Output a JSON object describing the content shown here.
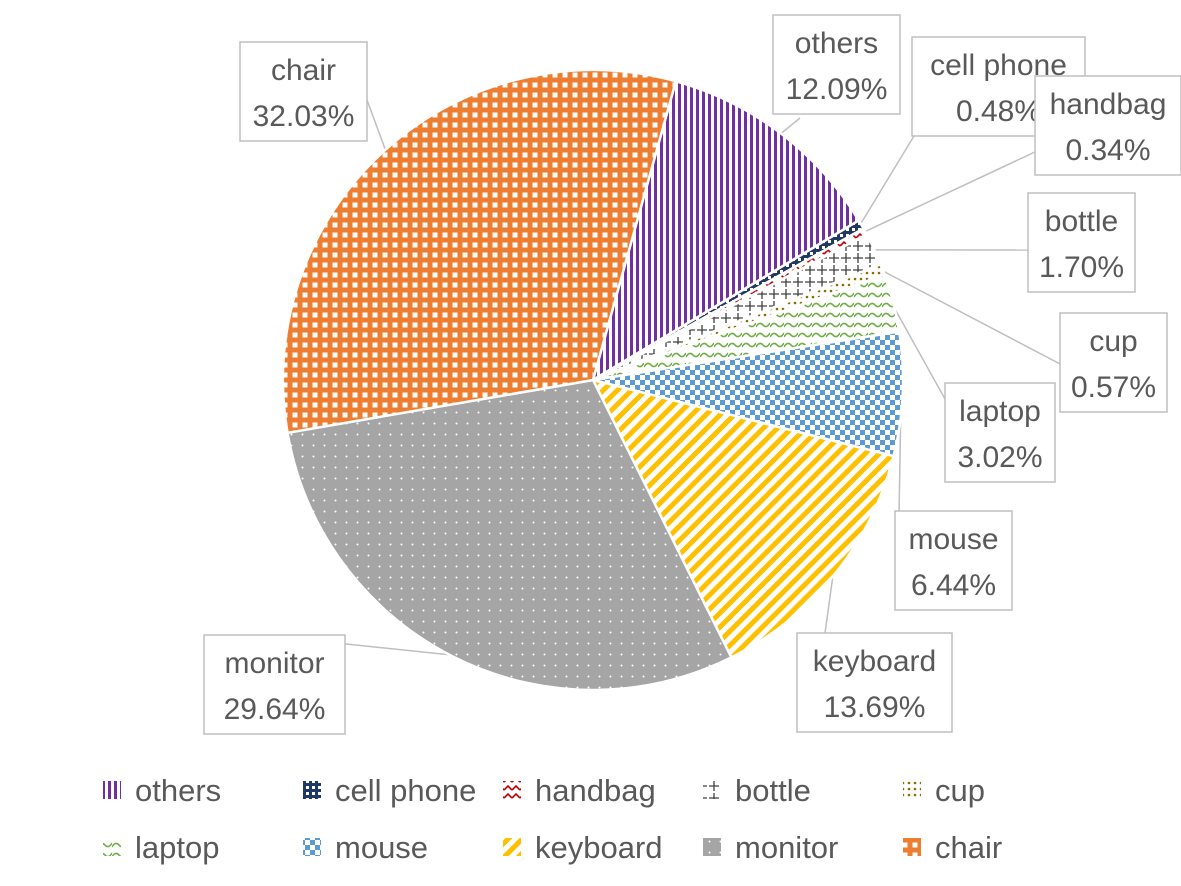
{
  "chart_data": {
    "type": "pie",
    "title": "",
    "legend_position": "bottom",
    "slices": [
      {
        "label": "others",
        "value": 12.09,
        "value_text": "12.09%",
        "color": "#7030a0"
      },
      {
        "label": "cell phone",
        "value": 0.48,
        "value_text": "0.48%",
        "color": "#1f3864"
      },
      {
        "label": "handbag",
        "value": 0.34,
        "value_text": "0.34%",
        "color": "#c00000"
      },
      {
        "label": "bottle",
        "value": 1.7,
        "value_text": "1.70%",
        "color": "#404040"
      },
      {
        "label": "cup",
        "value": 0.57,
        "value_text": "0.57%",
        "color": "#8c6d00"
      },
      {
        "label": "laptop",
        "value": 3.02,
        "value_text": "3.02%",
        "color": "#70ad47"
      },
      {
        "label": "mouse",
        "value": 6.44,
        "value_text": "6.44%",
        "color": "#5b9bd5"
      },
      {
        "label": "keyboard",
        "value": 13.69,
        "value_text": "13.69%",
        "color": "#ffc000"
      },
      {
        "label": "monitor",
        "value": 29.64,
        "value_text": "29.64%",
        "color": "#a5a5a5"
      },
      {
        "label": "chair",
        "value": 32.03,
        "value_text": "32.03%",
        "color": "#ed7d31"
      }
    ]
  }
}
